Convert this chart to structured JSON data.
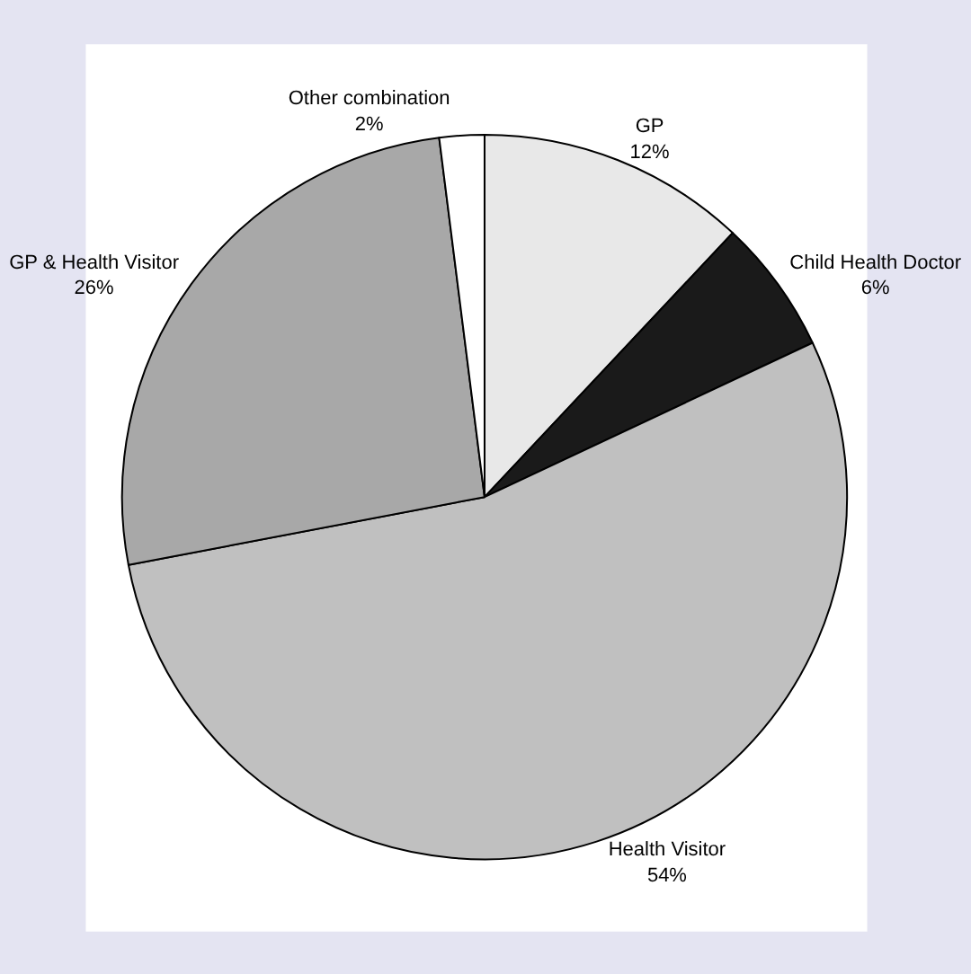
{
  "chart_data": {
    "type": "pie",
    "categories": [
      "GP",
      "Child Health Doctor",
      "Health Visitor",
      "GP & Health Visitor",
      "Other combination"
    ],
    "values": [
      12,
      6,
      54,
      26,
      2
    ],
    "value_labels": [
      "12%",
      "6%",
      "54%",
      "26%",
      "2%"
    ],
    "colors": [
      "#e8e8e8",
      "#1a1a1a",
      "#c0c0c0",
      "#a8a8a8",
      "#ffffff"
    ],
    "legend": false
  }
}
